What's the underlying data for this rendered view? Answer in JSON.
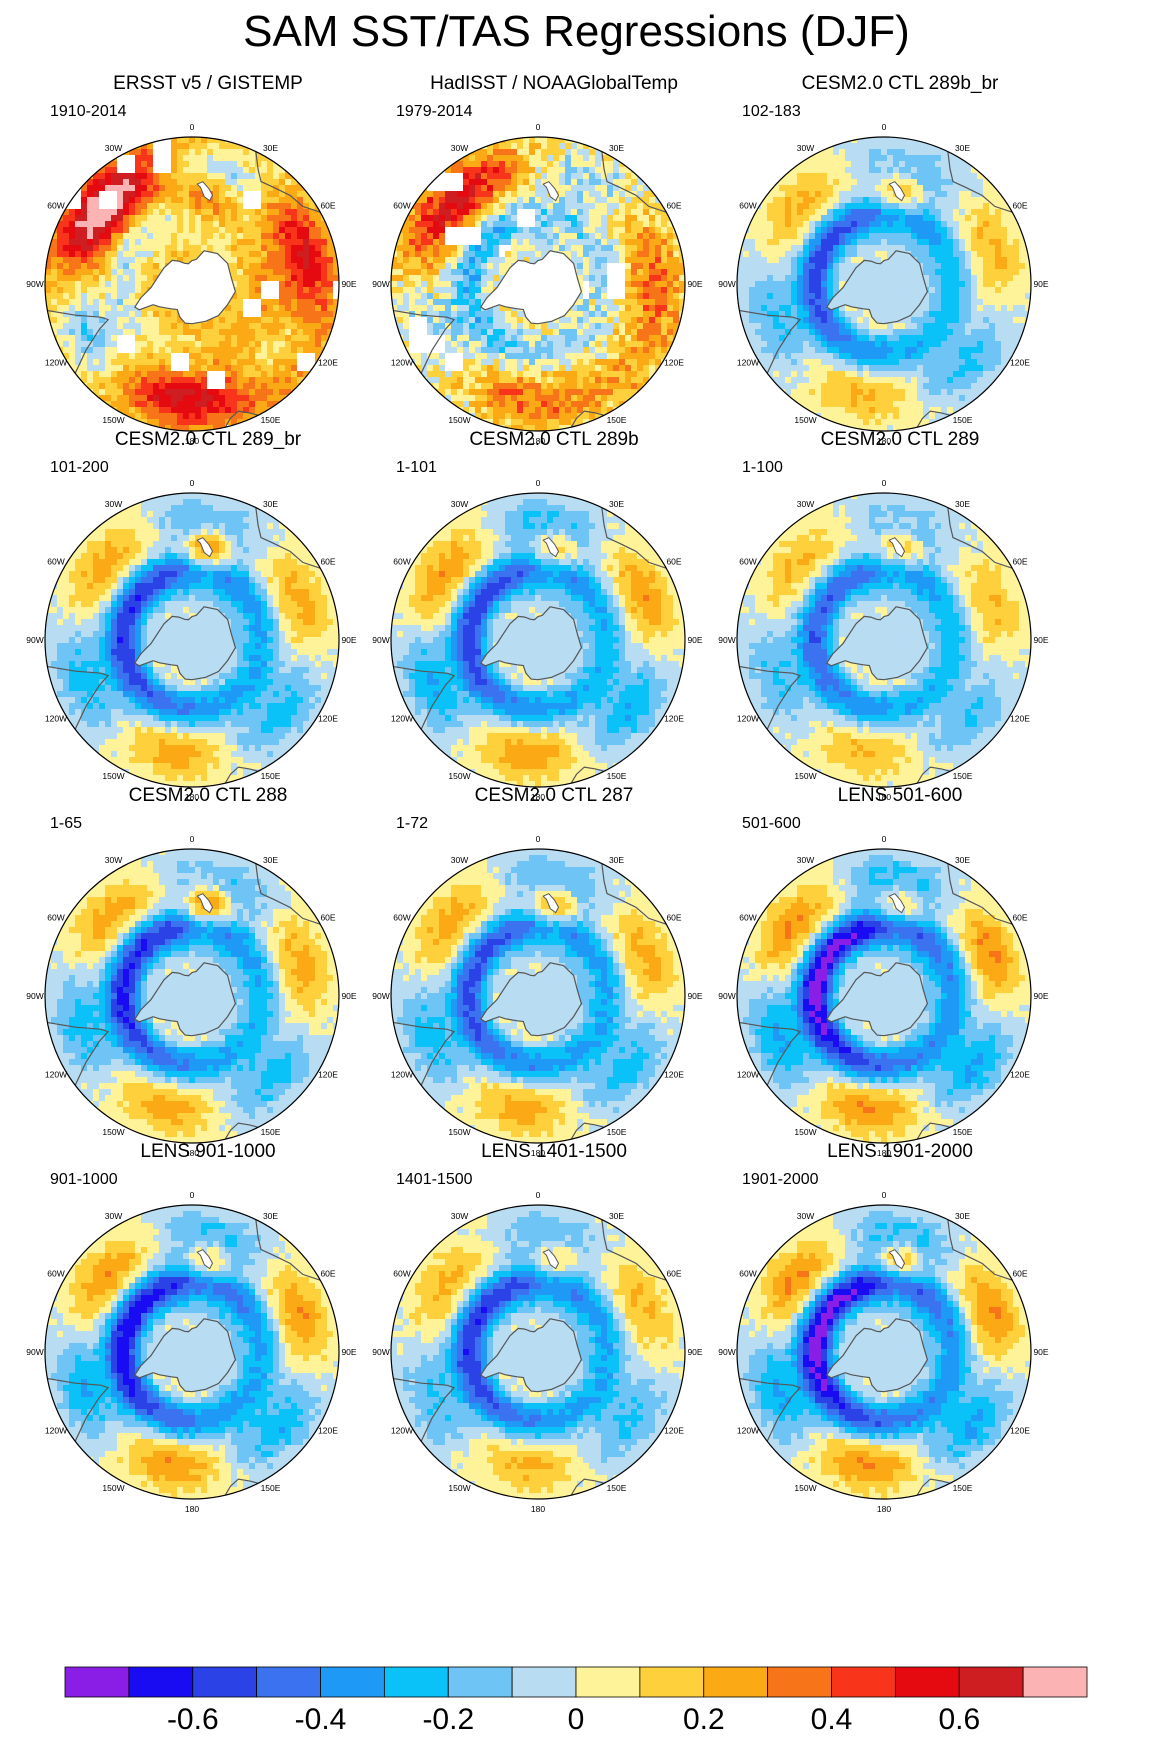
{
  "title": "SAM SST/TAS Regressions (DJF)",
  "chart_data": {
    "type": "heatmap",
    "projection": "south-polar-stereographic",
    "longitude_labels": [
      "0",
      "30E",
      "60E",
      "90E",
      "120E",
      "150E",
      "180",
      "150W",
      "120W",
      "90W",
      "60W",
      "30W"
    ],
    "colorbar": {
      "levels": [
        -0.7,
        -0.6,
        -0.5,
        -0.4,
        -0.3,
        -0.2,
        -0.1,
        0,
        0.1,
        0.2,
        0.3,
        0.4,
        0.5,
        0.6,
        0.7
      ],
      "colors": [
        "#8a1ee6",
        "#1a0cf2",
        "#2a42e6",
        "#3a72f0",
        "#1e9af6",
        "#0ac2f8",
        "#6ec4f4",
        "#b8dcf2",
        "#fff39a",
        "#fed03c",
        "#fba914",
        "#f87418",
        "#f8341a",
        "#e40a10",
        "#cf1e22",
        "#fbb3b3"
      ],
      "tick_labels": [
        "-0.6",
        "-0.4",
        "-0.2",
        "0",
        "0.2",
        "0.4",
        "0.6"
      ],
      "tick_values": [
        -0.6,
        -0.4,
        -0.2,
        0,
        0.2,
        0.4,
        0.6
      ]
    },
    "panels": [
      {
        "title": "ERSST v5 / GISTEMP",
        "period": "1910-2014",
        "ring": -0.05,
        "ring_amp": 0.15,
        "wave_amp": 0.35,
        "wave_phase": 0,
        "ross_high": 0.3,
        "background": 0.15,
        "noise": 0.08,
        "missing": true,
        "pattern": "observed"
      },
      {
        "title": "HadISST / NOAAGlobalTemp",
        "period": "1979-2014",
        "ring": -0.2,
        "ring_amp": 0.1,
        "wave_amp": 0.2,
        "wave_phase": 20,
        "ross_high": 0.05,
        "background": 0.05,
        "noise": 0.12,
        "missing": true,
        "pattern": "observed"
      },
      {
        "title": "CESM2.0 CTL 289b_br",
        "period": "102-183",
        "ring": -0.4,
        "ring_amp": 0.15,
        "wave_amp": 0.22,
        "wave_phase": 10,
        "ross_high": 0.35,
        "background": 0.0,
        "noise": 0.04,
        "missing": false,
        "pattern": "model"
      },
      {
        "title": "CESM2.0 CTL 289_br",
        "period": "101-200",
        "ring": -0.45,
        "ring_amp": 0.15,
        "wave_amp": 0.25,
        "wave_phase": 0,
        "ross_high": 0.5,
        "background": 0.0,
        "noise": 0.04,
        "missing": false,
        "pattern": "model"
      },
      {
        "title": "CESM2.0 CTL 289b",
        "period": "1-101",
        "ring": -0.42,
        "ring_amp": 0.15,
        "wave_amp": 0.28,
        "wave_phase": -10,
        "ross_high": 0.35,
        "background": 0.0,
        "noise": 0.04,
        "missing": false,
        "pattern": "model"
      },
      {
        "title": "CESM2.0 CTL 289",
        "period": "1-100",
        "ring": -0.38,
        "ring_amp": 0.12,
        "wave_amp": 0.2,
        "wave_phase": 5,
        "ross_high": 0.3,
        "background": 0.0,
        "noise": 0.04,
        "missing": false,
        "pattern": "model"
      },
      {
        "title": "CESM2.0 CTL 288",
        "period": "1-65",
        "ring": -0.45,
        "ring_amp": 0.18,
        "wave_amp": 0.25,
        "wave_phase": 15,
        "ross_high": 0.5,
        "background": 0.0,
        "noise": 0.04,
        "missing": false,
        "pattern": "model"
      },
      {
        "title": "CESM2.0 CTL 287",
        "period": "1-72",
        "ring": -0.42,
        "ring_amp": 0.12,
        "wave_amp": 0.25,
        "wave_phase": 0,
        "ross_high": 0.4,
        "background": 0.0,
        "noise": 0.04,
        "missing": false,
        "pattern": "model"
      },
      {
        "title": "LENS 501-600",
        "period": "501-600",
        "ring": -0.55,
        "ring_amp": 0.2,
        "wave_amp": 0.3,
        "wave_phase": -5,
        "ross_high": 0.35,
        "background": 0.0,
        "noise": 0.04,
        "missing": false,
        "pattern": "model"
      },
      {
        "title": "LENS 901-1000",
        "period": "901-1000",
        "ring": -0.5,
        "ring_amp": 0.18,
        "wave_amp": 0.28,
        "wave_phase": 5,
        "ross_high": 0.35,
        "background": 0.0,
        "noise": 0.04,
        "missing": false,
        "pattern": "model"
      },
      {
        "title": "LENS 1401-1500",
        "period": "1401-1500",
        "ring": -0.45,
        "ring_amp": 0.15,
        "wave_amp": 0.22,
        "wave_phase": -10,
        "ross_high": 0.3,
        "background": 0.0,
        "noise": 0.04,
        "missing": false,
        "pattern": "model"
      },
      {
        "title": "LENS 1901-2000",
        "period": "1901-2000",
        "ring": -0.55,
        "ring_amp": 0.2,
        "wave_amp": 0.3,
        "wave_phase": 0,
        "ross_high": 0.4,
        "background": 0.0,
        "noise": 0.04,
        "missing": false,
        "pattern": "model"
      }
    ]
  }
}
